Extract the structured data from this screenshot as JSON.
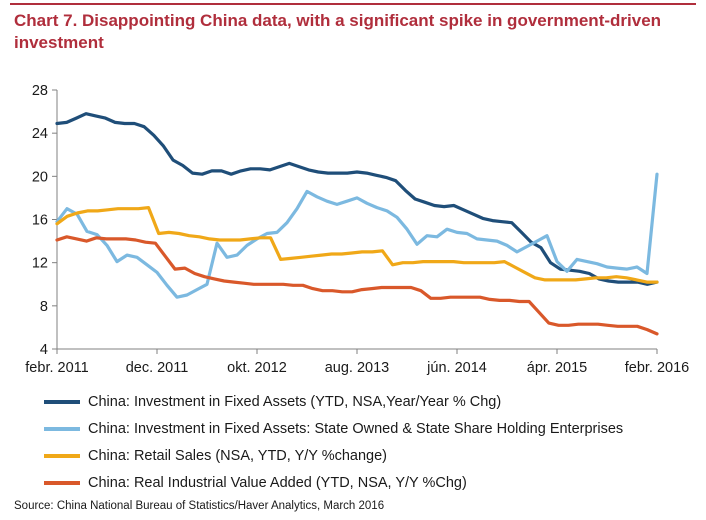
{
  "title": "Chart 7. Disappointing China data, with a significant spike in government-driven investment",
  "source": "Source: China National Bureau of Statistics/Haver Analytics, March 2016",
  "chart_data": {
    "type": "line",
    "title": "Chart 7. Disappointing China data, with a significant spike in government-driven investment",
    "xlabel": "",
    "ylabel": "",
    "ylim": [
      4,
      28
    ],
    "yticks": [
      4,
      8,
      12,
      16,
      20,
      24,
      28
    ],
    "x_tick_labels": [
      "febr. 2011",
      "dec. 2011",
      "okt. 2012",
      "aug. 2013",
      "jún. 2014",
      "ápr. 2015",
      "febr. 2016"
    ],
    "x_range_months": [
      "2011-02",
      "2016-02"
    ],
    "grid": false,
    "legend_position": "bottom",
    "series": [
      {
        "name": "China: Investment in Fixed Assets (YTD, NSA,Year/Year % Chg)",
        "color": "#1f4e79",
        "values": [
          24.9,
          25.0,
          25.4,
          25.8,
          25.6,
          25.4,
          25.0,
          24.9,
          24.9,
          24.6,
          23.8,
          22.8,
          21.5,
          21.0,
          20.3,
          20.2,
          20.5,
          20.5,
          20.2,
          20.5,
          20.7,
          20.7,
          20.6,
          20.9,
          21.2,
          20.9,
          20.6,
          20.4,
          20.3,
          20.3,
          20.3,
          20.4,
          20.3,
          20.1,
          19.9,
          19.6,
          18.7,
          17.9,
          17.6,
          17.3,
          17.2,
          17.3,
          16.9,
          16.5,
          16.1,
          15.9,
          15.8,
          15.7,
          14.8,
          13.9,
          13.4,
          12.0,
          11.4,
          11.3,
          11.2,
          11.0,
          10.5,
          10.3,
          10.2,
          10.2,
          10.2,
          10.0,
          10.2
        ]
      },
      {
        "name": "China: Investment in Fixed Assets: State Owned & State Share Holding Enterprises",
        "color": "#7cb9e0",
        "values": [
          15.8,
          17.0,
          16.5,
          14.9,
          14.6,
          13.6,
          12.1,
          12.7,
          12.5,
          11.8,
          11.1,
          9.9,
          8.8,
          9.0,
          9.5,
          10.0,
          13.8,
          12.5,
          12.7,
          13.6,
          14.2,
          14.7,
          14.8,
          15.7,
          17.0,
          18.6,
          18.1,
          17.7,
          17.4,
          17.7,
          18.0,
          17.5,
          17.1,
          16.8,
          16.2,
          15.1,
          13.7,
          14.5,
          14.4,
          15.1,
          14.8,
          14.7,
          14.2,
          14.1,
          14.0,
          13.6,
          13.0,
          13.5,
          14.0,
          14.5,
          12.1,
          11.2,
          12.3,
          12.1,
          11.9,
          11.6,
          11.5,
          11.4,
          11.6,
          11.0,
          20.2
        ]
      },
      {
        "name": "China: Retail Sales (NSA, YTD, Y/Y %change)",
        "color": "#f0a818",
        "values": [
          15.6,
          16.3,
          16.6,
          16.8,
          16.8,
          16.9,
          17.0,
          17.0,
          17.0,
          17.1,
          14.7,
          14.8,
          14.7,
          14.5,
          14.4,
          14.2,
          14.1,
          14.1,
          14.1,
          14.2,
          14.3,
          14.3,
          12.3,
          12.4,
          12.5,
          12.6,
          12.7,
          12.8,
          12.8,
          12.9,
          13.0,
          13.0,
          13.1,
          11.8,
          12.0,
          12.0,
          12.1,
          12.1,
          12.1,
          12.1,
          12.0,
          12.0,
          12.0,
          12.0,
          12.1,
          11.6,
          11.1,
          10.6,
          10.4,
          10.4,
          10.4,
          10.4,
          10.5,
          10.6,
          10.6,
          10.7,
          10.6,
          10.4,
          10.2,
          10.2
        ]
      },
      {
        "name": "China: Real Industrial Value Added (YTD, NSA, Y/Y %Chg)",
        "color": "#d9582a",
        "values": [
          14.1,
          14.4,
          14.2,
          14.0,
          14.3,
          14.2,
          14.2,
          14.2,
          14.1,
          13.9,
          13.8,
          12.6,
          11.4,
          11.5,
          11.0,
          10.7,
          10.5,
          10.3,
          10.2,
          10.1,
          10.0,
          10.0,
          10.0,
          10.0,
          9.9,
          9.9,
          9.6,
          9.4,
          9.4,
          9.3,
          9.3,
          9.5,
          9.6,
          9.7,
          9.7,
          9.7,
          9.7,
          9.4,
          8.7,
          8.7,
          8.8,
          8.8,
          8.8,
          8.8,
          8.6,
          8.5,
          8.5,
          8.4,
          8.4,
          7.4,
          6.4,
          6.2,
          6.2,
          6.3,
          6.3,
          6.3,
          6.2,
          6.1,
          6.1,
          6.1,
          5.8,
          5.4
        ]
      }
    ]
  }
}
